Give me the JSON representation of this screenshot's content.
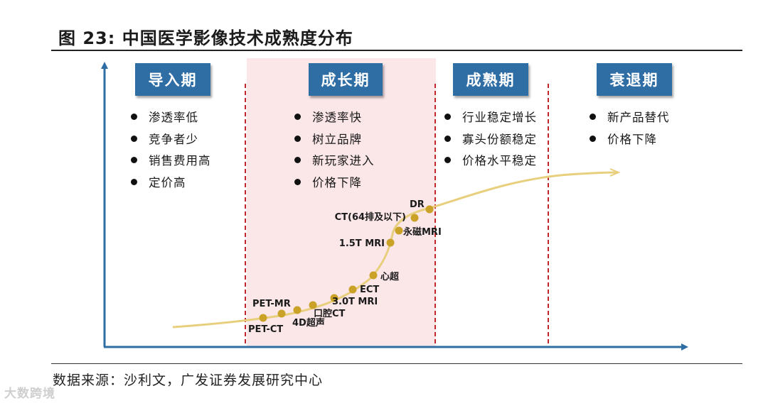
{
  "figure": {
    "title": "图 23:  中国医学影像技术成熟度分布",
    "source": "数据来源：沙利文，广发证券发展研究中心",
    "watermark": "大数跨境"
  },
  "colors": {
    "stage_box": "#2f6da5",
    "growth_band": "#fbe6e8",
    "divider": "#c0262c",
    "curve": "#e8cf7e",
    "point": "#c9a227",
    "axis": "#2f6da5"
  },
  "stages": [
    {
      "label": "导入期",
      "bullets": [
        "渗透率低",
        "竞争者少",
        "销售费用高",
        "定价高"
      ]
    },
    {
      "label": "成长期",
      "bullets": [
        "渗透率快",
        "树立品牌",
        "新玩家进入",
        "价格下降"
      ]
    },
    {
      "label": "成熟期",
      "bullets": [
        "行业稳定增长",
        "寡头份额稳定",
        "价格水平稳定"
      ]
    },
    {
      "label": "衰退期",
      "bullets": [
        "新产品替代",
        "价格下降"
      ]
    }
  ],
  "technologies": [
    "PET-CT",
    "PET-MR",
    "4D超声",
    "口腔CT",
    "3.0T MRI",
    "ECT",
    "心超",
    "1.5T MRI",
    "永磁MRI",
    "CT(64排及以下)",
    "DR"
  ]
}
